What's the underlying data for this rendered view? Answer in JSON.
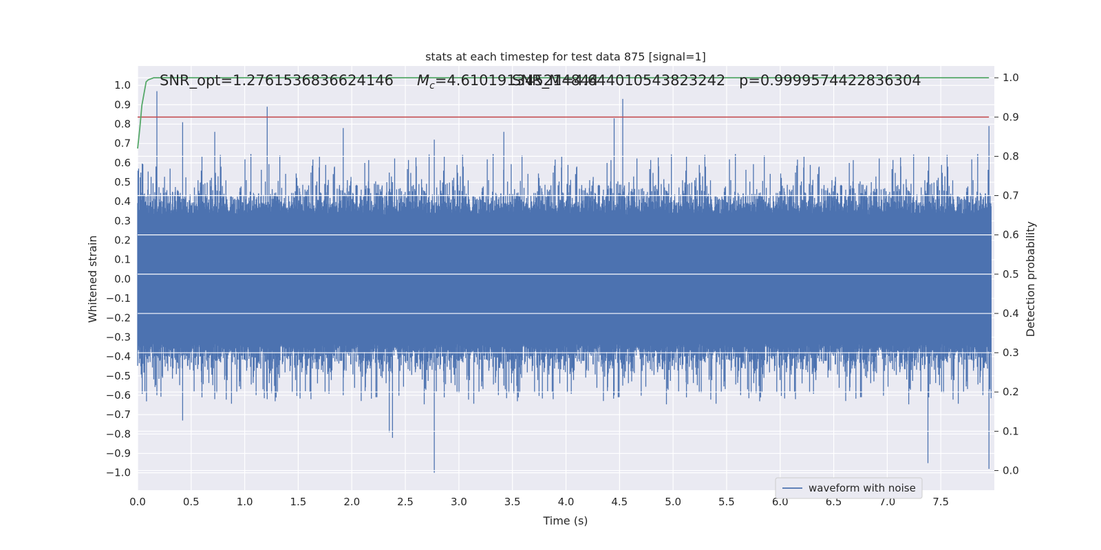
{
  "chart_data": {
    "type": "line",
    "title": "stats at each timestep for test data 875 [signal=1]",
    "xlabel": "Time (s)",
    "ylabel": "Whitened strain",
    "y2label": "Detection probability",
    "xlim": [
      0.0,
      8.0
    ],
    "ylim": [
      -1.09,
      1.1
    ],
    "y2lim": [
      -0.05,
      1.03
    ],
    "xticks": [
      "0.0",
      "0.5",
      "1.0",
      "1.5",
      "2.0",
      "2.5",
      "3.0",
      "3.5",
      "4.0",
      "4.5",
      "5.0",
      "5.5",
      "6.0",
      "6.5",
      "7.0",
      "7.5"
    ],
    "yticks": [
      "1.0",
      "0.9",
      "0.8",
      "0.7",
      "0.6",
      "0.5",
      "0.4",
      "0.3",
      "0.2",
      "0.1",
      "0.0",
      "−0.1",
      "−0.2",
      "−0.3",
      "−0.4",
      "−0.5",
      "−0.6",
      "−0.7",
      "−0.8",
      "−0.9",
      "−1.0"
    ],
    "y2ticks": [
      "1.0",
      "0.9",
      "0.8",
      "0.7",
      "0.6",
      "0.5",
      "0.4",
      "0.3",
      "0.2",
      "0.1",
      "0.0"
    ],
    "grid": true,
    "legend_position": "bottom-right",
    "annotations": [
      "SNR_opt=1.2761536836624146",
      "$M_c$=4.610191345214844",
      "SNR_M=4.644010543823242",
      "p=0.9999574422836304"
    ],
    "annotation_parts": {
      "mc_symbol": "M",
      "mc_subscript": "c",
      "mc_value": "=4.610191345214844"
    },
    "series": [
      {
        "name": "waveform with noise",
        "axis": "left",
        "color": "#4c72b0",
        "sampled_peaks": {
          "x": [
            0.03,
            0.18,
            0.42,
            0.72,
            1.21,
            1.92,
            2.35,
            2.38,
            2.77,
            3.42,
            4.45,
            4.53,
            7.38,
            7.95
          ],
          "y_max": [
            0.55,
            0.97,
            0.81,
            0.76,
            0.89,
            0.78,
            0.55,
            0.5,
            0.72,
            0.76,
            0.83,
            0.93,
            0.5,
            0.79
          ],
          "y_min": [
            -0.45,
            -0.6,
            -0.73,
            -0.62,
            -0.62,
            -0.6,
            -0.79,
            -0.82,
            -1.0,
            -0.55,
            -0.6,
            -0.55,
            -0.95,
            -0.98
          ]
        }
      },
      {
        "name": "",
        "axis": "right",
        "color": "#55a868",
        "x": [
          0.0,
          0.02,
          0.04,
          0.06,
          0.08,
          0.1,
          0.15,
          0.2,
          1.0,
          2.0,
          3.0,
          4.0,
          5.0,
          6.0,
          7.0,
          7.95
        ],
        "y": [
          0.82,
          0.87,
          0.93,
          0.96,
          0.99,
          0.995,
          1.0,
          1.0,
          1.0,
          1.0,
          1.0,
          1.0,
          1.0,
          1.0,
          1.0,
          1.0
        ]
      },
      {
        "name": "",
        "axis": "right",
        "color": "#c44e52",
        "x": [
          0.0,
          7.95
        ],
        "y": [
          0.9,
          0.9
        ]
      }
    ]
  },
  "colors": {
    "background": "#eaeaf2",
    "grid": "#ffffff",
    "waveform": "#4c72b0",
    "probability": "#55a868",
    "threshold": "#c44e52"
  }
}
